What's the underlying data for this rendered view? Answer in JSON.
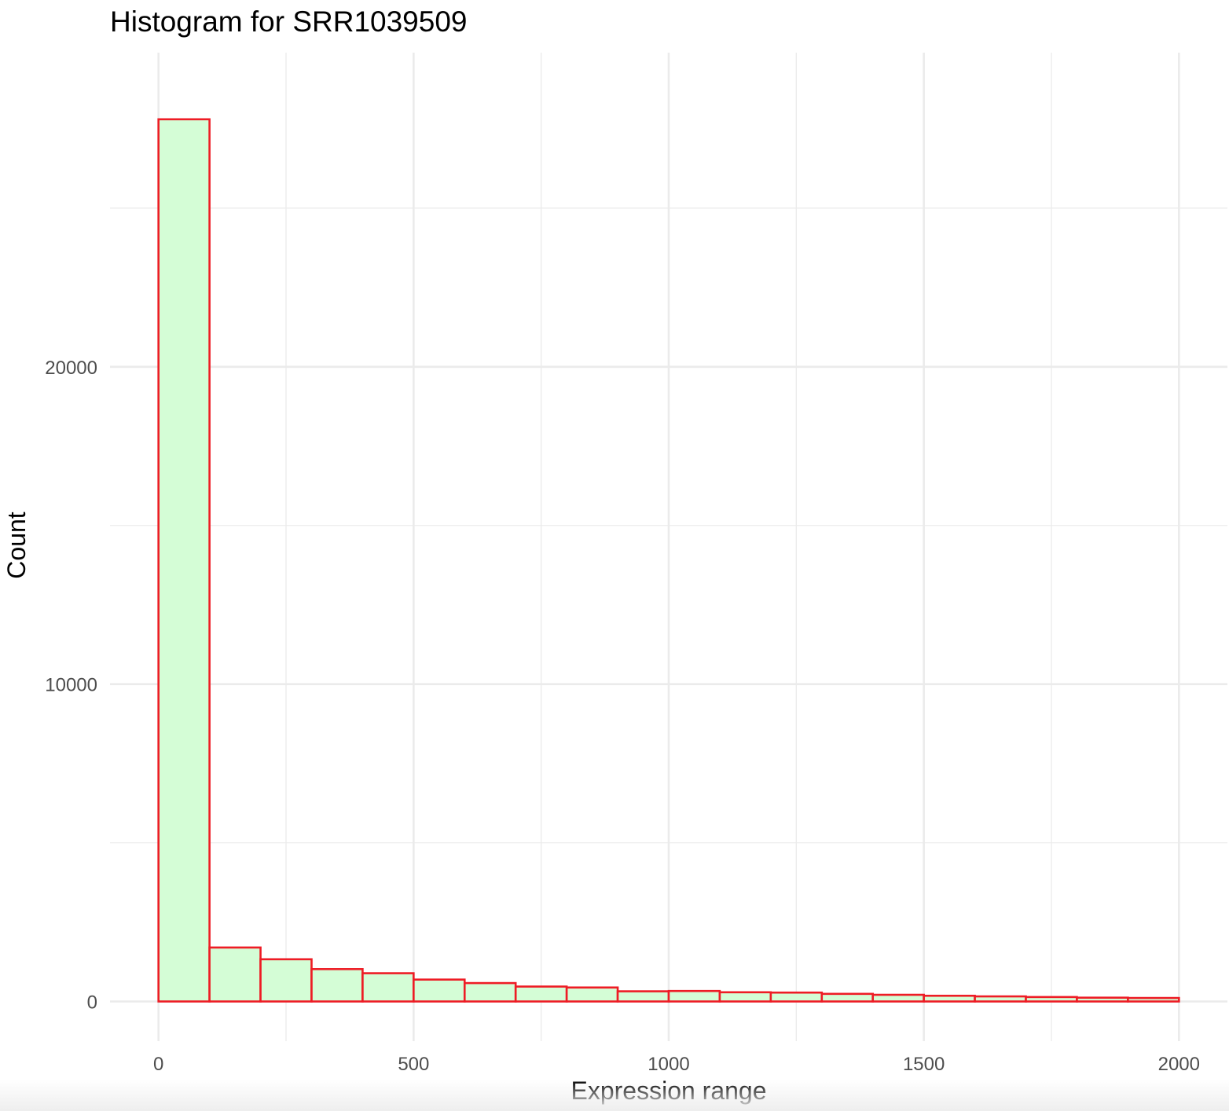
{
  "chart_data": {
    "type": "bar",
    "title": "Histogram for SRR1039509",
    "xlabel": "Expression range",
    "ylabel": "Count",
    "x_ticks": [
      0,
      500,
      1000,
      1500,
      2000
    ],
    "x_tick_labels": [
      "0",
      "500",
      "1000",
      "1500",
      "2000"
    ],
    "y_ticks": [
      0,
      10000,
      20000
    ],
    "y_tick_labels": [
      "0",
      "10000",
      "20000"
    ],
    "xlim": [
      -95,
      2095
    ],
    "ylim": [
      -1250,
      29900
    ],
    "bin_width": 100,
    "bin_starts": [
      0,
      100,
      200,
      300,
      400,
      500,
      600,
      700,
      800,
      900,
      1000,
      1100,
      1200,
      1300,
      1400,
      1500,
      1600,
      1700,
      1800,
      1900
    ],
    "values": [
      27800,
      1700,
      1330,
      1020,
      890,
      690,
      580,
      470,
      440,
      320,
      330,
      290,
      280,
      240,
      210,
      180,
      160,
      140,
      120,
      110
    ],
    "grid": true,
    "fill_color": "#d4fdd6",
    "edge_color": "#ee1c25",
    "grid_color": "#ebebeb",
    "tick_label_color": "#4d4d4d",
    "text_color": "#000000"
  }
}
